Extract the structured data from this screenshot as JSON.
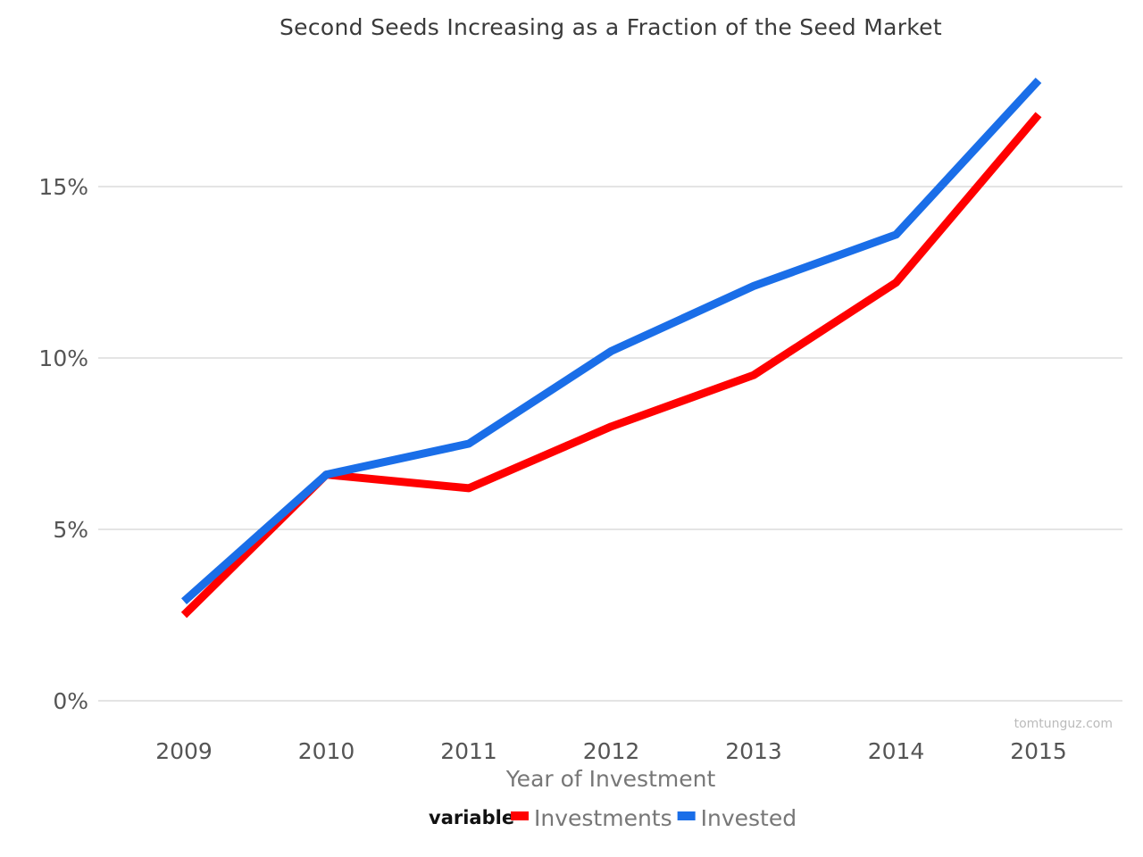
{
  "chart_data": {
    "type": "line",
    "title": "Second Seeds Increasing as a Fraction of the Seed Market",
    "xlabel": "Year of Investment",
    "ylabel": "",
    "categories": [
      "2009",
      "2010",
      "2011",
      "2012",
      "2013",
      "2014",
      "2015"
    ],
    "ylim": [
      0,
      20
    ],
    "yticks": [
      0,
      5,
      10,
      15
    ],
    "ytick_labels": [
      "0%",
      "5%",
      "10%",
      "15%"
    ],
    "grid": true,
    "legend": {
      "title": "variable",
      "position": "bottom"
    },
    "series": [
      {
        "name": "Investments",
        "color": "#ff0000",
        "values": [
          2.5,
          6.6,
          6.2,
          8.0,
          9.5,
          12.2,
          17.1
        ]
      },
      {
        "name": "Invested",
        "color": "#1a6ee8",
        "values": [
          2.9,
          6.6,
          7.5,
          10.2,
          12.1,
          13.6,
          18.1
        ]
      }
    ]
  },
  "watermark": "tomtunguz.com"
}
